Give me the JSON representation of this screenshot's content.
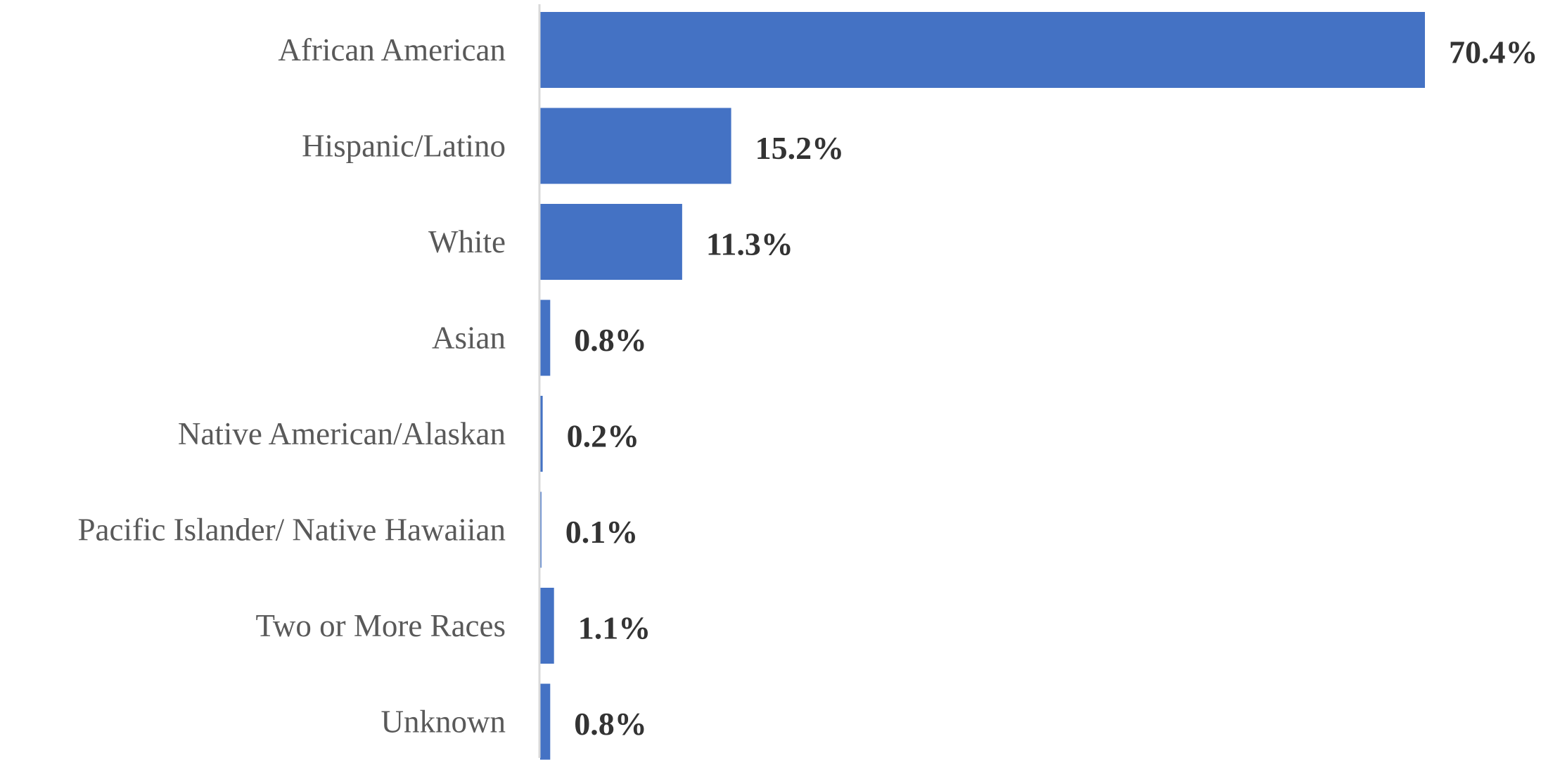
{
  "chart_data": {
    "type": "bar",
    "orientation": "horizontal",
    "categories": [
      "African American",
      "Hispanic/Latino",
      "White",
      "Asian",
      "Native American/Alaskan",
      "Pacific Islander/ Native Hawaiian",
      "Two or More Races",
      "Unknown"
    ],
    "values": [
      70.4,
      15.2,
      11.3,
      0.8,
      0.2,
      0.1,
      1.1,
      0.8
    ],
    "data_labels": [
      "70.4%",
      "15.2%",
      "11.3%",
      "0.8%",
      "0.2%",
      "0.1%",
      "1.1%",
      "0.8%"
    ],
    "title": "",
    "xlabel": "",
    "ylabel": "",
    "xlim": [
      0,
      70.4
    ],
    "grid": false,
    "legend": "none",
    "colors": {
      "bar": "#4472C4",
      "axis": "#D9D9D9",
      "category_text": "#595959",
      "label_text": "#333333"
    }
  }
}
